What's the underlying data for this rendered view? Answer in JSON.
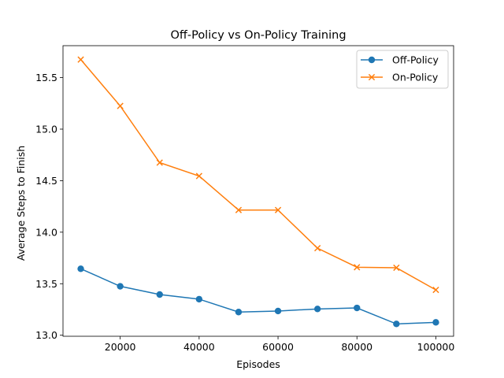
{
  "chart_data": {
    "type": "line",
    "title": "Off-Policy vs On-Policy Training",
    "xlabel": "Episodes",
    "ylabel": "Average Steps to Finish",
    "x": [
      10000,
      20000,
      30000,
      40000,
      50000,
      60000,
      70000,
      80000,
      90000,
      100000
    ],
    "xlim": [
      5500,
      104500
    ],
    "ylim": [
      12.99,
      15.81
    ],
    "xticks": [
      20000,
      40000,
      60000,
      80000,
      100000
    ],
    "xtick_labels": [
      "20000",
      "40000",
      "60000",
      "80000",
      "100000"
    ],
    "yticks": [
      13.0,
      13.5,
      14.0,
      14.5,
      15.0,
      15.5
    ],
    "ytick_labels": [
      "13.0",
      "13.5",
      "14.0",
      "14.5",
      "15.0",
      "15.5"
    ],
    "grid": false,
    "legend_position": "top-right",
    "series": [
      {
        "name": "Off-Policy",
        "marker": "circle",
        "color": "#1f77b4",
        "values": [
          13.645,
          13.475,
          13.395,
          13.35,
          13.225,
          13.235,
          13.255,
          13.265,
          13.11,
          13.125
        ]
      },
      {
        "name": "On-Policy",
        "marker": "x",
        "color": "#ff7f0e",
        "values": [
          15.675,
          15.225,
          14.675,
          14.545,
          14.215,
          14.215,
          13.845,
          13.66,
          13.655,
          13.44
        ]
      }
    ]
  }
}
